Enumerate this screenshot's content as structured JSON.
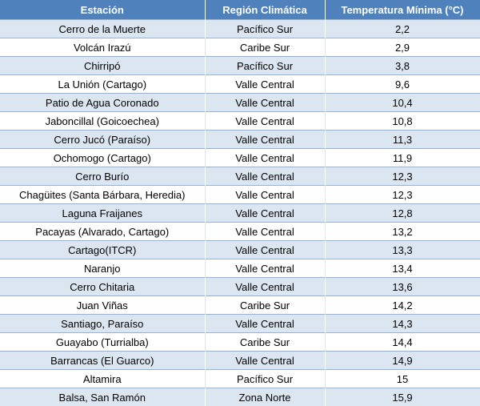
{
  "table": {
    "header": [
      "Estación",
      "Región Climática",
      "Temperatura Mínima (°C)"
    ],
    "rows": [
      [
        "Cerro de la Muerte",
        "Pacífico Sur",
        "2,2"
      ],
      [
        "Volcán Irazú",
        "Caribe Sur",
        "2,9"
      ],
      [
        "Chirripó",
        "Pacífico Sur",
        "3,8"
      ],
      [
        "La Unión (Cartago)",
        "Valle Central",
        "9,6"
      ],
      [
        "Patio de Agua Coronado",
        "Valle Central",
        "10,4"
      ],
      [
        "Jaboncillal (Goicoechea)",
        "Valle Central",
        "10,8"
      ],
      [
        "Cerro Jucó (Paraíso)",
        "Valle Central",
        "11,3"
      ],
      [
        "Ochomogo (Cartago)",
        "Valle Central",
        "11,9"
      ],
      [
        "Cerro Burío",
        "Valle Central",
        "12,3"
      ],
      [
        "Chagüites (Santa Bárbara, Heredia)",
        "Valle Central",
        "12,3"
      ],
      [
        "Laguna Fraijanes",
        "Valle Central",
        "12,8"
      ],
      [
        "Pacayas (Alvarado, Cartago)",
        "Valle Central",
        "13,2"
      ],
      [
        "Cartago(ITCR)",
        "Valle Central",
        "13,3"
      ],
      [
        "Naranjo",
        "Valle Central",
        "13,4"
      ],
      [
        "Cerro Chitaria",
        "Valle Central",
        "13,6"
      ],
      [
        "Juan Viñas",
        "Caribe Sur",
        "14,2"
      ],
      [
        "Santiago, Paraíso",
        "Valle Central",
        "14,3"
      ],
      [
        "Guayabo (Turrialba)",
        "Caribe Sur",
        "14,4"
      ],
      [
        "Barrancas (El Guarco)",
        "Valle Central",
        "14,9"
      ],
      [
        "Altamira",
        "Pacífico Sur",
        "15"
      ],
      [
        "Balsa, San Ramón",
        "Zona Norte",
        "15,9"
      ]
    ]
  }
}
